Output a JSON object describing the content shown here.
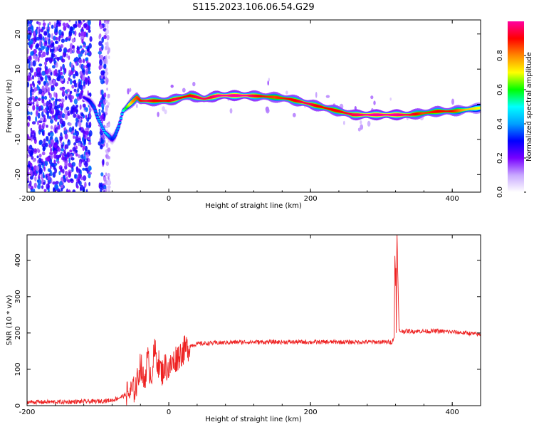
{
  "title": "S115.2023.106.06.54.G29",
  "chart_data": [
    {
      "type": "heatmap",
      "xlabel": "Height of straight line (km)",
      "ylabel": "Frequency (Hz)",
      "xlim": [
        -200,
        440
      ],
      "ylim": [
        -25,
        24
      ],
      "x_ticks": [
        "-200",
        "0",
        "200",
        "400"
      ],
      "x_tick_values": [
        -200,
        0,
        200,
        400
      ],
      "y_ticks": [
        "-20",
        "-10",
        "0",
        "10",
        "20"
      ],
      "y_tick_values": [
        -20,
        -10,
        0,
        10,
        20
      ],
      "colorbar": {
        "label": "Normalized spectral amplitude",
        "range": [
          0,
          1
        ],
        "ticks": [
          "0.0",
          "0.2",
          "0.4",
          "0.6",
          "0.8"
        ],
        "tick_values": [
          0.0,
          0.2,
          0.4,
          0.6,
          0.8
        ],
        "colors": [
          "#ffffff",
          "#c8a8ff",
          "#7700ff",
          "#0000ff",
          "#00a0ff",
          "#00ffff",
          "#00ff00",
          "#ffff00",
          "#ff8800",
          "#ff0000",
          "#ff00a0"
        ]
      },
      "ridge": {
        "x": [
          -120,
          -112,
          -105,
          -100,
          -95,
          -90,
          -85,
          -80,
          -76,
          -70,
          -65,
          -60,
          -55,
          -50,
          -45,
          -40,
          -30,
          -20,
          -10,
          0,
          10,
          20,
          30,
          40,
          50,
          60,
          70,
          90,
          110,
          130,
          150,
          170,
          180,
          190,
          200,
          210,
          220,
          240,
          260,
          280,
          300,
          320,
          340,
          360,
          380,
          400,
          420,
          440
        ],
        "frequency": [
          2,
          1,
          -1,
          -4,
          -6,
          -8,
          -9,
          -10,
          -9,
          -6,
          -2,
          -1,
          0,
          1,
          2,
          1,
          1,
          1,
          1,
          1,
          1.5,
          2,
          2.5,
          2,
          1.5,
          2,
          2.5,
          2.5,
          2.5,
          2.3,
          2,
          1.5,
          1,
          0.5,
          0,
          -0.5,
          -1,
          -2,
          -3,
          -3,
          -3,
          -3,
          -3,
          -2.5,
          -2,
          -2,
          -1.5,
          -1
        ],
        "amplitude": [
          0.25,
          0.3,
          0.35,
          0.4,
          0.4,
          0.45,
          0.4,
          0.3,
          0.35,
          0.4,
          0.5,
          0.6,
          0.7,
          0.8,
          0.85,
          0.9,
          0.95,
          0.9,
          0.9,
          0.9,
          0.95,
          0.9,
          0.9,
          0.95,
          0.95,
          0.95,
          1.0,
          1.0,
          1.0,
          0.9,
          0.85,
          0.9,
          0.9,
          0.95,
          0.95,
          0.9,
          0.9,
          0.9,
          0.95,
          1.0,
          1.0,
          1.0,
          0.95,
          0.85,
          0.9,
          0.9,
          0.75,
          0.7
        ]
      }
    },
    {
      "type": "line",
      "xlabel": "Height of straight line (km)",
      "ylabel": "SNR (10 * v/v)",
      "xlim": [
        -200,
        440
      ],
      "ylim": [
        0,
        470
      ],
      "x_ticks": [
        "-200",
        "0",
        "200",
        "400"
      ],
      "x_tick_values": [
        -200,
        0,
        200,
        400
      ],
      "y_ticks": [
        "0",
        "100",
        "200",
        "300",
        "400"
      ],
      "y_tick_values": [
        0,
        100,
        200,
        300,
        400
      ],
      "line_color": "#ee2222",
      "series": [
        {
          "x": [
            -200,
            -150,
            -100,
            -80,
            -70,
            -60,
            -50,
            -45,
            -40,
            -35,
            -30,
            -25,
            -20,
            -15,
            -10,
            -5,
            0,
            10,
            20,
            30,
            40,
            60,
            100,
            140,
            180,
            220,
            260,
            300,
            315,
            320,
            322,
            325,
            340,
            380,
            420,
            440
          ],
          "values": [
            10,
            10,
            12,
            15,
            22,
            30,
            40,
            60,
            120,
            60,
            130,
            80,
            150,
            120,
            90,
            110,
            100,
            130,
            150,
            165,
            170,
            172,
            175,
            175,
            175,
            175,
            175,
            175,
            175,
            200,
            470,
            205,
            205,
            205,
            200,
            195
          ]
        }
      ]
    }
  ]
}
